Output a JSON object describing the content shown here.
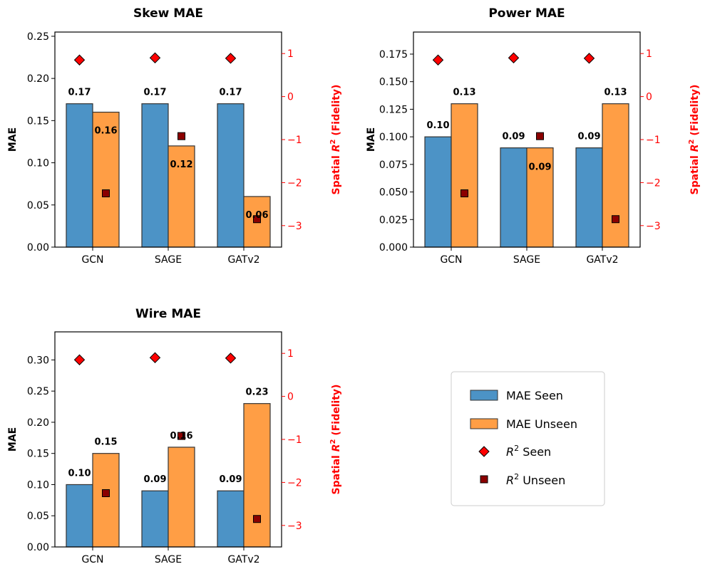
{
  "colors": {
    "mae_seen": "#4C93C6",
    "mae_unseen": "#FF9E45",
    "r2_seen": "#FF0000",
    "r2_unseen": "#8B0000",
    "right_axis": "#FF0000"
  },
  "legend": {
    "mae_seen": "MAE Seen",
    "mae_unseen": "MAE Unseen",
    "r2_seen_prefix": "R",
    "r2_seen_suffix": " Seen",
    "r2_unseen_prefix": "R",
    "r2_unseen_suffix": " Unseen",
    "superscript": "2"
  },
  "chart_data": [
    {
      "type": "bar",
      "title": "Skew MAE",
      "categories": [
        "GCN",
        "SAGE",
        "GATv2"
      ],
      "ylabel": "MAE",
      "ylim": [
        0,
        0.255
      ],
      "yticks": [
        "0.00",
        "0.05",
        "0.10",
        "0.15",
        "0.20",
        "0.25"
      ],
      "ytick_values": [
        0,
        0.05,
        0.1,
        0.15,
        0.2,
        0.25
      ],
      "y2label_prefix": "Spatial ",
      "y2label_var": "R",
      "y2label_sup": "2",
      "y2label_suffix": " (Fidelity)",
      "y2lim": [
        -3.5,
        1.5
      ],
      "y2ticks": [
        "1",
        "0",
        "−1",
        "−2",
        "−3"
      ],
      "y2tick_values": [
        1,
        0,
        -1,
        -2,
        -3
      ],
      "series": [
        {
          "name": "MAE Seen",
          "values": [
            0.17,
            0.17,
            0.17
          ],
          "labels": [
            "0.17",
            "0.17",
            "0.17"
          ]
        },
        {
          "name": "MAE Unseen",
          "values": [
            0.16,
            0.12,
            0.06
          ],
          "labels": [
            "0.16",
            "0.12",
            "0.06"
          ]
        }
      ],
      "r2_seen": [
        0.85,
        0.9,
        0.89
      ],
      "r2_unseen": [
        -2.25,
        -0.92,
        -2.85
      ]
    },
    {
      "type": "bar",
      "title": "Power MAE",
      "categories": [
        "GCN",
        "SAGE",
        "GATv2"
      ],
      "ylabel": "MAE",
      "ylim": [
        0,
        0.195
      ],
      "yticks": [
        "0.000",
        "0.025",
        "0.050",
        "0.075",
        "0.100",
        "0.125",
        "0.150",
        "0.175"
      ],
      "ytick_values": [
        0,
        0.025,
        0.05,
        0.075,
        0.1,
        0.125,
        0.15,
        0.175
      ],
      "y2label_prefix": "Spatial ",
      "y2label_var": "R",
      "y2label_sup": "2",
      "y2label_suffix": " (Fidelity)",
      "y2lim": [
        -3.5,
        1.5
      ],
      "y2ticks": [
        "1",
        "0",
        "−1",
        "−2",
        "−3"
      ],
      "y2tick_values": [
        1,
        0,
        -1,
        -2,
        -3
      ],
      "series": [
        {
          "name": "MAE Seen",
          "values": [
            0.1,
            0.09,
            0.09
          ],
          "labels": [
            "0.10",
            "0.09",
            "0.09"
          ]
        },
        {
          "name": "MAE Unseen",
          "values": [
            0.13,
            0.09,
            0.13
          ],
          "labels": [
            "0.13",
            "0.09",
            "0.13"
          ]
        }
      ],
      "r2_seen": [
        0.85,
        0.9,
        0.89
      ],
      "r2_unseen": [
        -2.25,
        -0.92,
        -2.85
      ]
    },
    {
      "type": "bar",
      "title": "Wire MAE",
      "categories": [
        "GCN",
        "SAGE",
        "GATv2"
      ],
      "ylabel": "MAE",
      "ylim": [
        0,
        0.345
      ],
      "yticks": [
        "0.00",
        "0.05",
        "0.10",
        "0.15",
        "0.20",
        "0.25",
        "0.30"
      ],
      "ytick_values": [
        0,
        0.05,
        0.1,
        0.15,
        0.2,
        0.25,
        0.3
      ],
      "y2label_prefix": "Spatial ",
      "y2label_var": "R",
      "y2label_sup": "2",
      "y2label_suffix": " (Fidelity)",
      "y2lim": [
        -3.5,
        1.5
      ],
      "y2ticks": [
        "1",
        "0",
        "−1",
        "−2",
        "−3"
      ],
      "y2tick_values": [
        1,
        0,
        -1,
        -2,
        -3
      ],
      "series": [
        {
          "name": "MAE Seen",
          "values": [
            0.1,
            0.09,
            0.09
          ],
          "labels": [
            "0.10",
            "0.09",
            "0.09"
          ]
        },
        {
          "name": "MAE Unseen",
          "values": [
            0.15,
            0.16,
            0.23
          ],
          "labels": [
            "0.15",
            "0.16",
            "0.23"
          ]
        }
      ],
      "r2_seen": [
        0.85,
        0.9,
        0.89
      ],
      "r2_unseen": [
        -2.25,
        -0.92,
        -2.85
      ]
    }
  ]
}
